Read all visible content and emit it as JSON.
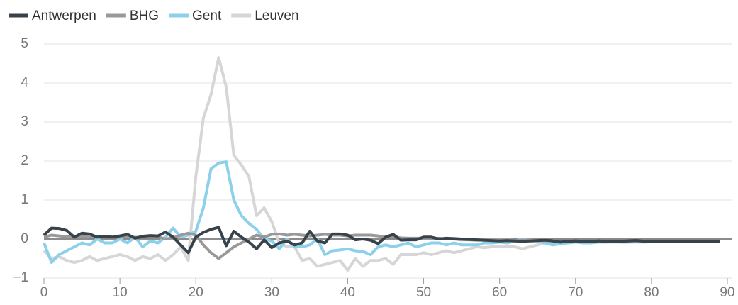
{
  "chart_data": {
    "type": "line",
    "x": [
      0,
      1,
      2,
      3,
      4,
      5,
      6,
      7,
      8,
      9,
      10,
      11,
      12,
      13,
      14,
      15,
      16,
      17,
      18,
      19,
      20,
      21,
      22,
      23,
      24,
      25,
      26,
      27,
      28,
      29,
      30,
      31,
      32,
      33,
      34,
      35,
      36,
      37,
      38,
      39,
      40,
      41,
      42,
      43,
      44,
      45,
      46,
      47,
      48,
      49,
      50,
      51,
      52,
      53,
      54,
      55,
      56,
      57,
      58,
      59,
      60,
      61,
      62,
      63,
      64,
      65,
      66,
      67,
      68,
      69,
      70,
      71,
      72,
      73,
      74,
      75,
      76,
      77,
      78,
      79,
      80,
      81,
      82,
      83,
      84,
      85,
      86,
      87,
      88,
      89
    ],
    "series": [
      {
        "name": "Antwerpen",
        "color": "#37424a",
        "values": [
          0.1,
          0.28,
          0.27,
          0.22,
          0.05,
          0.15,
          0.13,
          0.05,
          0.07,
          0.05,
          0.08,
          0.12,
          0.02,
          0.07,
          0.09,
          0.08,
          0.18,
          0.05,
          -0.15,
          -0.35,
          0.05,
          0.17,
          0.25,
          0.3,
          -0.17,
          0.2,
          0.05,
          -0.08,
          -0.25,
          -0.02,
          -0.22,
          -0.1,
          -0.05,
          -0.15,
          -0.1,
          0.2,
          -0.05,
          -0.1,
          0.13,
          0.13,
          0.1,
          -0.02,
          0,
          -0.03,
          -0.12,
          0.05,
          0.12,
          -0.03,
          -0.02,
          -0.02,
          0.05,
          0.05,
          0,
          0.02,
          0.01,
          0,
          -0.01,
          -0.02,
          -0.03,
          -0.04,
          -0.05,
          -0.04,
          -0.05,
          -0.06,
          -0.05,
          -0.04,
          -0.03,
          -0.05,
          -0.08,
          -0.06,
          -0.05,
          -0.06,
          -0.07,
          -0.05,
          -0.06,
          -0.07,
          -0.06,
          -0.05,
          -0.04,
          -0.06,
          -0.06,
          -0.07,
          -0.06,
          -0.07,
          -0.07,
          -0.06,
          -0.07,
          -0.07,
          -0.07,
          -0.07
        ]
      },
      {
        "name": "BHG",
        "color": "#999999",
        "values": [
          0.05,
          0.1,
          0.08,
          0.06,
          0.05,
          0.07,
          0.05,
          0.06,
          0.05,
          0.04,
          0.05,
          0.06,
          0.04,
          0.05,
          0.05,
          0.06,
          0,
          0.03,
          0.1,
          0.15,
          0.1,
          -0.15,
          -0.35,
          -0.5,
          -0.35,
          -0.2,
          -0.1,
          0,
          0.1,
          0.05,
          0.12,
          0.13,
          0.1,
          0.12,
          0.1,
          0.08,
          0.1,
          0.12,
          0.1,
          0.1,
          0.08,
          0.1,
          0.1,
          0.1,
          0.08,
          0.05,
          0.05,
          0.03,
          0.02,
          0.02,
          0.02,
          0,
          0.02,
          0,
          0,
          -0.02,
          -0.02,
          -0.03,
          -0.03,
          -0.02,
          -0.03,
          -0.02,
          -0.04,
          -0.03,
          -0.03,
          -0.04,
          -0.04,
          -0.05,
          -0.05,
          -0.05,
          -0.05,
          -0.05,
          -0.05,
          -0.05,
          -0.05,
          -0.05,
          -0.05,
          -0.05,
          -0.05,
          -0.05,
          -0.05,
          -0.05,
          -0.05,
          -0.05,
          -0.05,
          -0.05,
          -0.05,
          -0.05,
          -0.05,
          -0.05
        ]
      },
      {
        "name": "Gent",
        "color": "#8dd0ea",
        "values": [
          -0.1,
          -0.6,
          -0.4,
          -0.3,
          -0.2,
          -0.1,
          -0.15,
          0,
          -0.1,
          -0.1,
          0,
          -0.1,
          0.05,
          -0.2,
          -0.05,
          -0.1,
          0.05,
          0.28,
          0.05,
          0.1,
          0.2,
          0.8,
          1.8,
          1.95,
          1.98,
          1.0,
          0.6,
          0.4,
          0.25,
          0,
          -0.05,
          -0.25,
          0,
          -0.2,
          -0.2,
          -0.15,
          0,
          -0.4,
          -0.3,
          -0.28,
          -0.25,
          -0.3,
          -0.32,
          -0.4,
          -0.2,
          -0.15,
          -0.2,
          -0.15,
          -0.1,
          -0.2,
          -0.15,
          -0.1,
          -0.1,
          -0.15,
          -0.1,
          -0.15,
          -0.15,
          -0.15,
          -0.1,
          -0.1,
          -0.08,
          -0.1,
          -0.05,
          0,
          -0.05,
          -0.05,
          -0.1,
          -0.15,
          -0.12,
          -0.1,
          -0.08,
          -0.1,
          -0.1,
          -0.08,
          -0.08,
          -0.06,
          -0.08,
          -0.08,
          -0.07,
          -0.07,
          -0.07,
          -0.07,
          -0.07,
          -0.07,
          -0.07,
          -0.07,
          -0.07,
          -0.07,
          -0.07,
          -0.07
        ]
      },
      {
        "name": "Leuven",
        "color": "#d6d6d6",
        "values": [
          -0.3,
          -0.5,
          -0.45,
          -0.55,
          -0.6,
          -0.55,
          -0.45,
          -0.55,
          -0.5,
          -0.45,
          -0.4,
          -0.45,
          -0.55,
          -0.45,
          -0.5,
          -0.4,
          -0.55,
          -0.4,
          -0.2,
          -0.55,
          1.6,
          3.1,
          3.7,
          4.65,
          3.9,
          2.15,
          1.9,
          1.6,
          0.6,
          0.8,
          0.45,
          -0.1,
          -0.2,
          -0.2,
          -0.55,
          -0.5,
          -0.7,
          -0.65,
          -0.6,
          -0.55,
          -0.8,
          -0.5,
          -0.7,
          -0.55,
          -0.55,
          -0.5,
          -0.65,
          -0.4,
          -0.4,
          -0.4,
          -0.35,
          -0.4,
          -0.35,
          -0.3,
          -0.35,
          -0.3,
          -0.25,
          -0.2,
          -0.22,
          -0.2,
          -0.18,
          -0.2,
          -0.2,
          -0.25,
          -0.2,
          -0.15,
          -0.1,
          -0.08,
          -0.1,
          -0.08,
          -0.08,
          -0.08,
          -0.08,
          -0.08,
          -0.08,
          -0.08,
          -0.08,
          -0.08,
          -0.08,
          -0.08,
          -0.07,
          -0.07,
          -0.07,
          -0.07,
          -0.07,
          -0.07,
          -0.07,
          -0.07,
          -0.07,
          -0.07
        ]
      }
    ],
    "xlim": [
      0,
      90
    ],
    "xticks": [
      0,
      10,
      20,
      30,
      40,
      50,
      60,
      70,
      80,
      90
    ],
    "ylim": [
      -1,
      5
    ],
    "yticks": [
      {
        "value": -1,
        "label": "−1"
      },
      0,
      1,
      2,
      3,
      4,
      5
    ],
    "grid": true,
    "legend": "top-left"
  }
}
